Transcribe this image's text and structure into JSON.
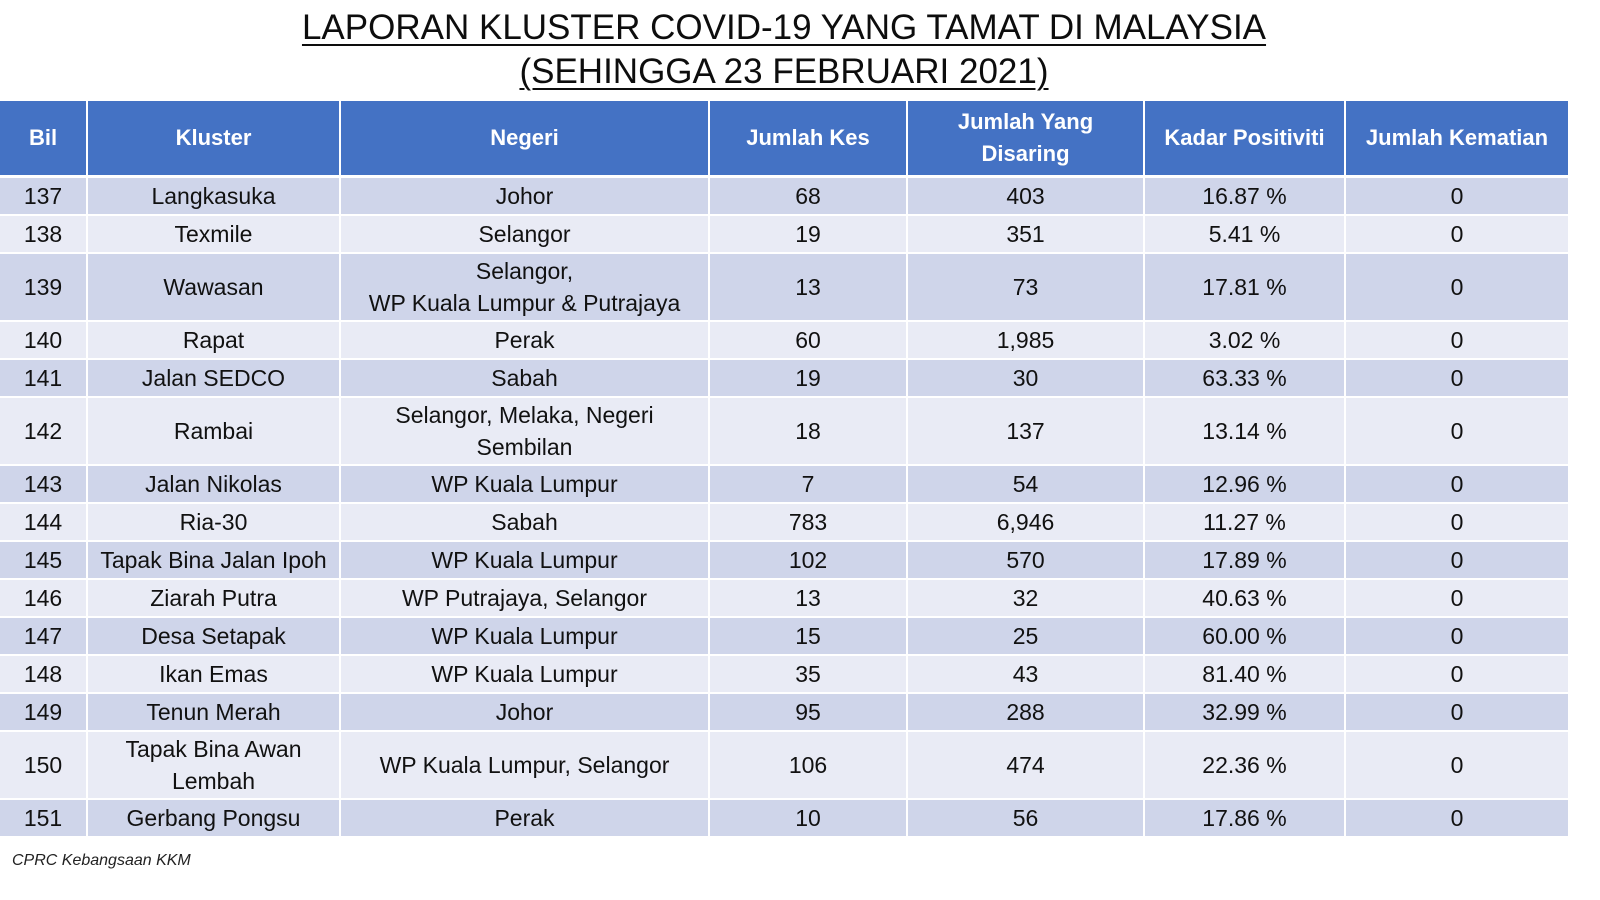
{
  "title": {
    "line1": "LAPORAN KLUSTER COVID-19 YANG TAMAT DI MALAYSIA",
    "line2": "(SEHINGGA  23 FEBRUARI 2021)"
  },
  "table": {
    "headers": {
      "bil": "Bil",
      "kluster": "Kluster",
      "negeri": "Negeri",
      "jumlah_kes": "Jumlah Kes",
      "jumlah_disaring": "Jumlah Yang Disaring",
      "kadar_positiviti": "Kadar Positiviti",
      "jumlah_kematian": "Jumlah Kematian"
    },
    "rows": [
      {
        "bil": "137",
        "kluster": "Langkasuka",
        "negeri": "Johor",
        "kes": "68",
        "disaring": "403",
        "positiviti": "16.87 %",
        "kematian": "0"
      },
      {
        "bil": "138",
        "kluster": "Texmile",
        "negeri": "Selangor",
        "kes": "19",
        "disaring": "351",
        "positiviti": "5.41 %",
        "kematian": "0"
      },
      {
        "bil": "139",
        "kluster": "Wawasan",
        "negeri": "Selangor,\nWP Kuala Lumpur & Putrajaya",
        "kes": "13",
        "disaring": "73",
        "positiviti": "17.81 %",
        "kematian": "0"
      },
      {
        "bil": "140",
        "kluster": "Rapat",
        "negeri": "Perak",
        "kes": "60",
        "disaring": "1,985",
        "positiviti": "3.02 %",
        "kematian": "0"
      },
      {
        "bil": "141",
        "kluster": "Jalan SEDCO",
        "negeri": "Sabah",
        "kes": "19",
        "disaring": "30",
        "positiviti": "63.33 %",
        "kematian": "0"
      },
      {
        "bil": "142",
        "kluster": "Rambai",
        "negeri": "Selangor, Melaka, Negeri\nSembilan",
        "kes": "18",
        "disaring": "137",
        "positiviti": "13.14 %",
        "kematian": "0"
      },
      {
        "bil": "143",
        "kluster": "Jalan Nikolas",
        "negeri": "WP Kuala Lumpur",
        "kes": "7",
        "disaring": "54",
        "positiviti": "12.96 %",
        "kematian": "0"
      },
      {
        "bil": "144",
        "kluster": "Ria-30",
        "negeri": "Sabah",
        "kes": "783",
        "disaring": "6,946",
        "positiviti": "11.27 %",
        "kematian": "0"
      },
      {
        "bil": "145",
        "kluster": "Tapak Bina Jalan Ipoh",
        "negeri": "WP Kuala Lumpur",
        "kes": "102",
        "disaring": "570",
        "positiviti": "17.89 %",
        "kematian": "0"
      },
      {
        "bil": "146",
        "kluster": "Ziarah Putra",
        "negeri": "WP Putrajaya, Selangor",
        "kes": "13",
        "disaring": "32",
        "positiviti": "40.63 %",
        "kematian": "0"
      },
      {
        "bil": "147",
        "kluster": "Desa Setapak",
        "negeri": "WP Kuala Lumpur",
        "kes": "15",
        "disaring": "25",
        "positiviti": "60.00 %",
        "kematian": "0"
      },
      {
        "bil": "148",
        "kluster": "Ikan Emas",
        "negeri": "WP Kuala Lumpur",
        "kes": "35",
        "disaring": "43",
        "positiviti": "81.40 %",
        "kematian": "0"
      },
      {
        "bil": "149",
        "kluster": "Tenun Merah",
        "negeri": "Johor",
        "kes": "95",
        "disaring": "288",
        "positiviti": "32.99 %",
        "kematian": "0"
      },
      {
        "bil": "150",
        "kluster": "Tapak Bina Awan\nLembah",
        "negeri": "WP Kuala Lumpur, Selangor",
        "kes": "106",
        "disaring": "474",
        "positiviti": "22.36 %",
        "kematian": "0"
      },
      {
        "bil": "151",
        "kluster": "Gerbang Pongsu",
        "negeri": "Perak",
        "kes": "10",
        "disaring": "56",
        "positiviti": "17.86 %",
        "kematian": "0"
      }
    ]
  },
  "footer": {
    "source": "CPRC Kebangsaan KKM"
  },
  "colors": {
    "header_bg": "#4472c4",
    "row_odd": "#cfd5ea",
    "row_even": "#e9ebf5"
  }
}
